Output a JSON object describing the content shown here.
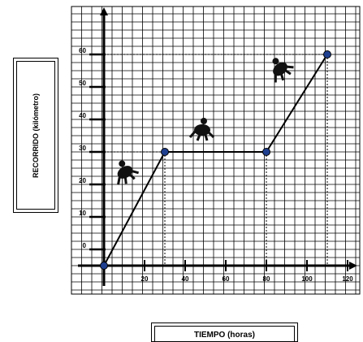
{
  "chart_data": {
    "type": "line",
    "xlabel": "TIEMPO (horas)",
    "ylabel": "RECORRIDO (kilómetro)",
    "x_ticks": [
      20,
      40,
      60,
      80,
      100,
      120
    ],
    "y_ticks": [
      0,
      10,
      20,
      30,
      40,
      50,
      60
    ],
    "xlim": [
      0,
      140
    ],
    "ylim": [
      -5,
      75
    ],
    "grid": true,
    "series": [
      {
        "points": [
          {
            "x": 0,
            "y": -5
          },
          {
            "x": 30,
            "y": 30
          },
          {
            "x": 80,
            "y": 30
          },
          {
            "x": 110,
            "y": 60
          }
        ],
        "color": "#000000",
        "marker_color": "#1f3f8f"
      }
    ],
    "guide_lines": [
      {
        "x": 30,
        "y": 30
      },
      {
        "x": 80,
        "y": 30
      },
      {
        "x": 110,
        "y": 60
      }
    ],
    "icons": [
      "running-figure-icon",
      "running-figure-icon",
      "running-figure-icon"
    ]
  }
}
